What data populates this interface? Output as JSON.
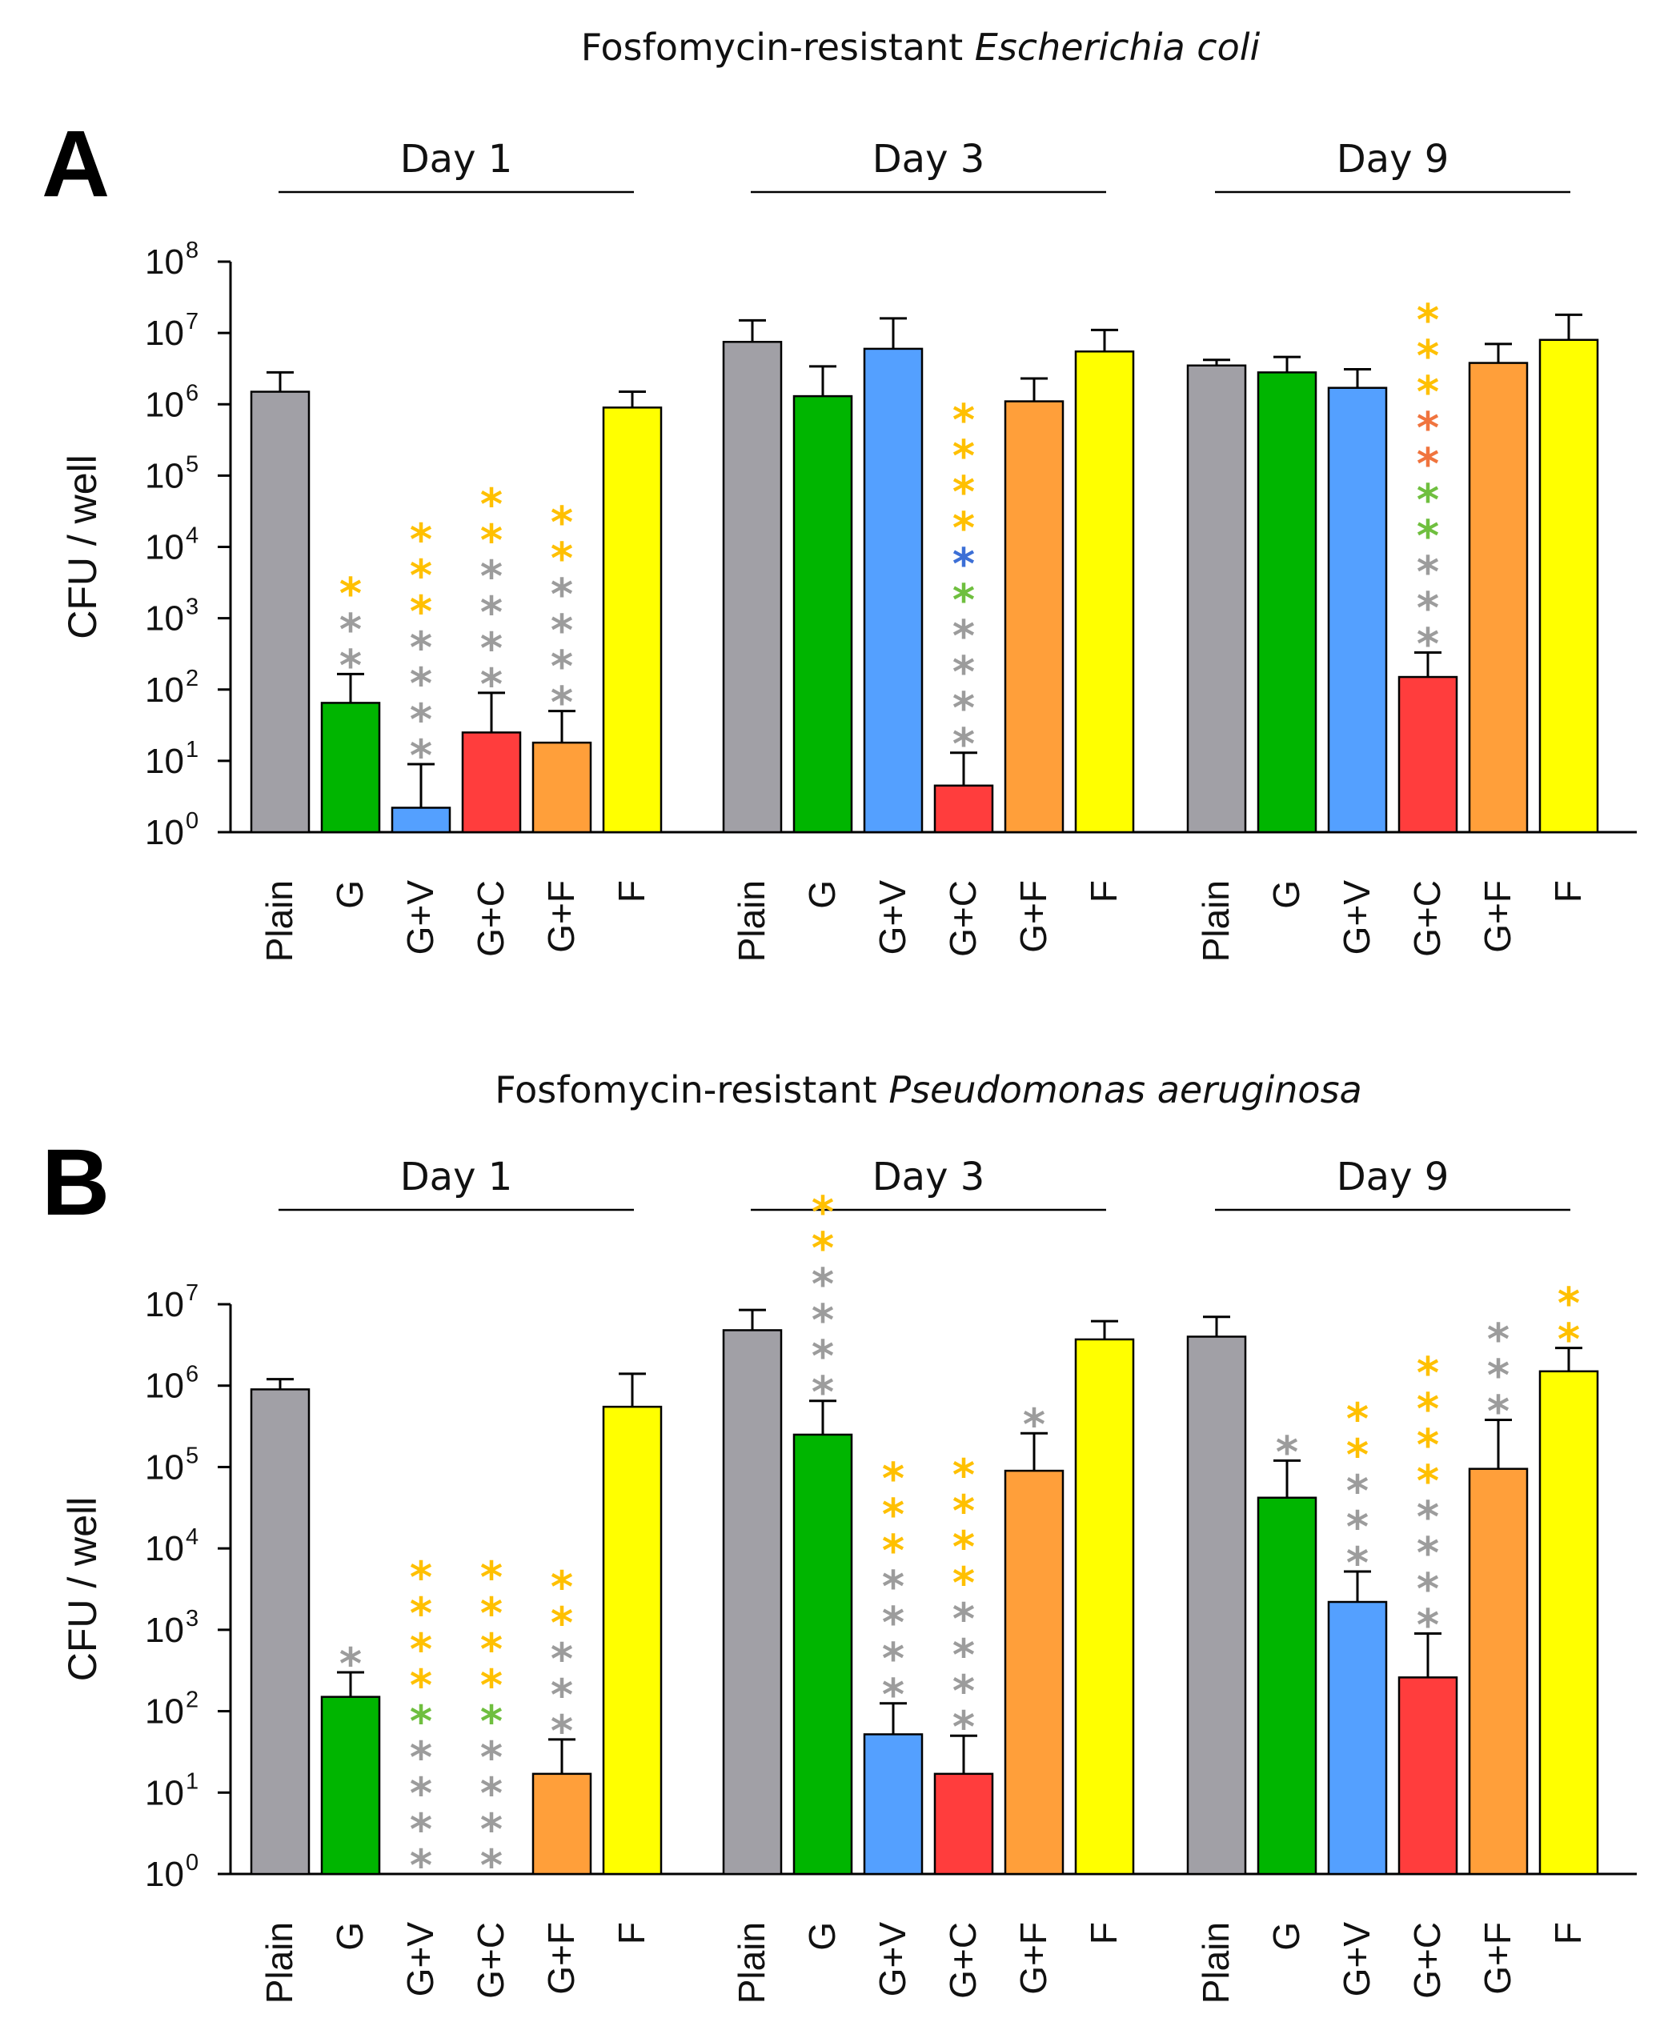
{
  "chart_data": [
    {
      "type": "bar",
      "panel": "A",
      "title_prefix": "Fosfomycin-resistant ",
      "title_species": "Escherichia coli",
      "ylabel": "CFU / well",
      "scale": "log10",
      "ylim": [
        1,
        100000000
      ],
      "ytick_base": "10",
      "ytick_exponents": [
        "0",
        "1",
        "2",
        "3",
        "4",
        "5",
        "6",
        "7",
        "8"
      ],
      "categories": [
        "Plain",
        "G",
        "G+V",
        "G+C",
        "G+F",
        "F"
      ],
      "colors": [
        "#a1a0a6",
        "#00b500",
        "#54a0ff",
        "#ff3d3d",
        "#ff9f3a",
        "#ffff00"
      ],
      "star_colors": {
        "gray": "#9c9c9c",
        "yellow": "#ffc000",
        "green": "#6fbf3f",
        "blue": "#3c6fd6",
        "orange": "#f0743e"
      },
      "groups": [
        {
          "label": "Day 1",
          "values": [
            1500000,
            65,
            2.2,
            25,
            18,
            900000
          ],
          "error_upper": [
            2800000,
            165,
            9,
            90,
            50,
            1500000
          ],
          "stars": [
            [],
            [
              "yellow",
              "gray",
              "gray"
            ],
            [
              "yellow",
              "yellow",
              "yellow",
              "gray",
              "gray",
              "gray",
              "gray"
            ],
            [
              "yellow",
              "yellow",
              "gray",
              "gray",
              "gray",
              "gray"
            ],
            [
              "yellow",
              "yellow",
              "gray",
              "gray",
              "gray",
              "gray"
            ],
            []
          ]
        },
        {
          "label": "Day 3",
          "values": [
            7500000,
            1300000,
            6000000,
            4.5,
            1100000,
            5500000
          ],
          "error_upper": [
            15000000,
            3400000,
            16000000,
            13,
            2300000,
            11000000
          ],
          "stars": [
            [],
            [],
            [],
            [
              "yellow",
              "yellow",
              "yellow",
              "yellow",
              "blue",
              "green",
              "gray",
              "gray",
              "gray",
              "gray"
            ],
            [],
            []
          ]
        },
        {
          "label": "Day 9",
          "values": [
            3500000,
            2800000,
            1700000,
            150,
            3800000,
            8000000
          ],
          "error_upper": [
            4200000,
            4600000,
            3100000,
            330,
            7000000,
            18000000
          ],
          "stars": [
            [],
            [],
            [],
            [
              "yellow",
              "yellow",
              "yellow",
              "orange",
              "orange",
              "green",
              "green",
              "gray",
              "gray",
              "gray"
            ],
            [],
            []
          ]
        }
      ]
    },
    {
      "type": "bar",
      "panel": "B",
      "title_prefix": "Fosfomycin-resistant ",
      "title_species": "Pseudomonas aeruginosa",
      "ylabel": "CFU / well",
      "scale": "log10",
      "ylim": [
        1,
        10000000
      ],
      "ytick_base": "10",
      "ytick_exponents": [
        "0",
        "1",
        "2",
        "3",
        "4",
        "5",
        "6",
        "7"
      ],
      "categories": [
        "Plain",
        "G",
        "G+V",
        "G+C",
        "G+F",
        "F"
      ],
      "colors": [
        "#a1a0a6",
        "#00b500",
        "#54a0ff",
        "#ff3d3d",
        "#ff9f3a",
        "#ffff00"
      ],
      "star_colors": {
        "gray": "#9c9c9c",
        "yellow": "#ffc000",
        "green": "#6fbf3f",
        "blue": "#3c6fd6",
        "orange": "#f0743e"
      },
      "groups": [
        {
          "label": "Day 1",
          "values": [
            900000,
            150,
            null,
            null,
            17,
            550000
          ],
          "error_upper": [
            1200000,
            300,
            null,
            null,
            45,
            1400000
          ],
          "stars": [
            [],
            [
              "gray"
            ],
            [
              "yellow",
              "yellow",
              "yellow",
              "yellow",
              "green",
              "gray",
              "gray",
              "gray",
              "gray"
            ],
            [
              "yellow",
              "yellow",
              "yellow",
              "yellow",
              "green",
              "gray",
              "gray",
              "gray",
              "gray"
            ],
            [
              "yellow",
              "yellow",
              "gray",
              "gray",
              "gray"
            ],
            []
          ]
        },
        {
          "label": "Day 3",
          "values": [
            4800000,
            250000,
            52,
            17,
            90000,
            3700000
          ],
          "error_upper": [
            8500000,
            650000,
            125,
            50,
            260000,
            6200000
          ],
          "stars": [
            [],
            [
              "yellow",
              "yellow",
              "gray",
              "gray",
              "gray",
              "gray"
            ],
            [
              "yellow",
              "yellow",
              "yellow",
              "gray",
              "gray",
              "gray",
              "gray"
            ],
            [
              "yellow",
              "yellow",
              "yellow",
              "yellow",
              "gray",
              "gray",
              "gray",
              "gray"
            ],
            [
              "gray"
            ],
            []
          ]
        },
        {
          "label": "Day 9",
          "values": [
            4000000,
            42000,
            2200,
            260,
            95000,
            1500000
          ],
          "error_upper": [
            7000000,
            120000,
            5200,
            900,
            380000,
            2900000
          ],
          "stars": [
            [],
            [
              "gray"
            ],
            [
              "yellow",
              "yellow",
              "gray",
              "gray",
              "gray"
            ],
            [
              "yellow",
              "yellow",
              "yellow",
              "yellow",
              "gray",
              "gray",
              "gray",
              "gray"
            ],
            [
              "gray",
              "gray",
              "gray"
            ],
            [
              "yellow",
              "yellow"
            ]
          ]
        }
      ]
    }
  ]
}
